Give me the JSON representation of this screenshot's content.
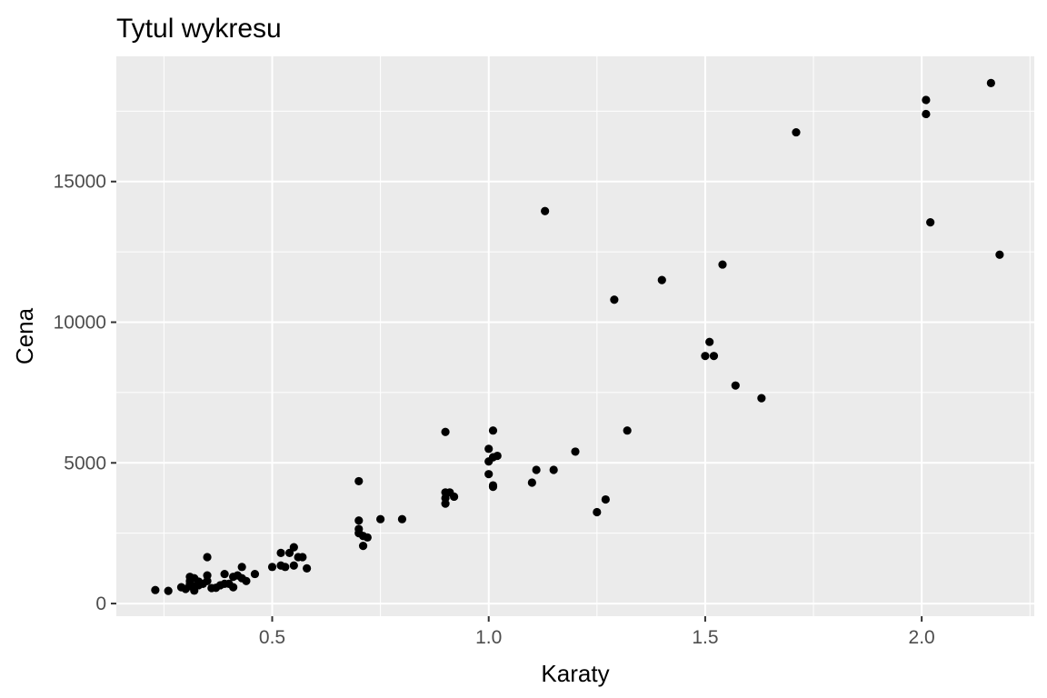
{
  "chart_data": {
    "type": "scatter",
    "title": "Tytul wykresu",
    "xlabel": "Karaty",
    "ylabel": "Cena",
    "xlim": [
      0.14,
      2.26
    ],
    "ylim": [
      -450,
      19450
    ],
    "x_ticks": [
      0.5,
      1.0,
      1.5,
      2.0
    ],
    "x_tick_labels": [
      "0.5",
      "1.0",
      "1.5",
      "2.0"
    ],
    "y_ticks": [
      0,
      5000,
      10000,
      15000
    ],
    "y_tick_labels": [
      "0",
      "5000",
      "10000",
      "15000"
    ],
    "grid": true,
    "legend": "none",
    "colors": {
      "panel": "#ebebeb",
      "grid": "#ffffff",
      "point": "#000000",
      "tick": "#333333",
      "tick_label": "#4d4d4d"
    },
    "points": [
      {
        "x": 0.23,
        "y": 480
      },
      {
        "x": 0.26,
        "y": 450
      },
      {
        "x": 0.29,
        "y": 580
      },
      {
        "x": 0.3,
        "y": 520
      },
      {
        "x": 0.31,
        "y": 950
      },
      {
        "x": 0.31,
        "y": 800
      },
      {
        "x": 0.31,
        "y": 700
      },
      {
        "x": 0.31,
        "y": 620
      },
      {
        "x": 0.32,
        "y": 460
      },
      {
        "x": 0.32,
        "y": 600
      },
      {
        "x": 0.32,
        "y": 900
      },
      {
        "x": 0.33,
        "y": 650
      },
      {
        "x": 0.33,
        "y": 780
      },
      {
        "x": 0.34,
        "y": 700
      },
      {
        "x": 0.35,
        "y": 1000
      },
      {
        "x": 0.35,
        "y": 1650
      },
      {
        "x": 0.35,
        "y": 800
      },
      {
        "x": 0.36,
        "y": 550
      },
      {
        "x": 0.37,
        "y": 560
      },
      {
        "x": 0.38,
        "y": 650
      },
      {
        "x": 0.39,
        "y": 1050
      },
      {
        "x": 0.39,
        "y": 700
      },
      {
        "x": 0.4,
        "y": 700
      },
      {
        "x": 0.41,
        "y": 950
      },
      {
        "x": 0.41,
        "y": 580
      },
      {
        "x": 0.42,
        "y": 1000
      },
      {
        "x": 0.43,
        "y": 1300
      },
      {
        "x": 0.43,
        "y": 900
      },
      {
        "x": 0.44,
        "y": 800
      },
      {
        "x": 0.46,
        "y": 1050
      },
      {
        "x": 0.5,
        "y": 1300
      },
      {
        "x": 0.52,
        "y": 1350
      },
      {
        "x": 0.52,
        "y": 1800
      },
      {
        "x": 0.53,
        "y": 1300
      },
      {
        "x": 0.54,
        "y": 1800
      },
      {
        "x": 0.55,
        "y": 2000
      },
      {
        "x": 0.55,
        "y": 1350
      },
      {
        "x": 0.56,
        "y": 1650
      },
      {
        "x": 0.57,
        "y": 1650
      },
      {
        "x": 0.58,
        "y": 1250
      },
      {
        "x": 0.7,
        "y": 4350
      },
      {
        "x": 0.7,
        "y": 2950
      },
      {
        "x": 0.7,
        "y": 2650
      },
      {
        "x": 0.7,
        "y": 2500
      },
      {
        "x": 0.71,
        "y": 2400
      },
      {
        "x": 0.71,
        "y": 2050
      },
      {
        "x": 0.72,
        "y": 2350
      },
      {
        "x": 0.75,
        "y": 3000
      },
      {
        "x": 0.8,
        "y": 3000
      },
      {
        "x": 0.9,
        "y": 6100
      },
      {
        "x": 0.9,
        "y": 3950
      },
      {
        "x": 0.9,
        "y": 3750
      },
      {
        "x": 0.9,
        "y": 3550
      },
      {
        "x": 0.91,
        "y": 3950
      },
      {
        "x": 0.92,
        "y": 3800
      },
      {
        "x": 1.0,
        "y": 5500
      },
      {
        "x": 1.0,
        "y": 5050
      },
      {
        "x": 1.0,
        "y": 4600
      },
      {
        "x": 1.01,
        "y": 6150
      },
      {
        "x": 1.01,
        "y": 5200
      },
      {
        "x": 1.01,
        "y": 4200
      },
      {
        "x": 1.01,
        "y": 4150
      },
      {
        "x": 1.02,
        "y": 5250
      },
      {
        "x": 1.1,
        "y": 4300
      },
      {
        "x": 1.11,
        "y": 4750
      },
      {
        "x": 1.13,
        "y": 13950
      },
      {
        "x": 1.15,
        "y": 4750
      },
      {
        "x": 1.2,
        "y": 5400
      },
      {
        "x": 1.25,
        "y": 3250
      },
      {
        "x": 1.27,
        "y": 3700
      },
      {
        "x": 1.29,
        "y": 10800
      },
      {
        "x": 1.32,
        "y": 6150
      },
      {
        "x": 1.4,
        "y": 11500
      },
      {
        "x": 1.5,
        "y": 8800
      },
      {
        "x": 1.51,
        "y": 9300
      },
      {
        "x": 1.52,
        "y": 8800
      },
      {
        "x": 1.54,
        "y": 12050
      },
      {
        "x": 1.57,
        "y": 7750
      },
      {
        "x": 1.63,
        "y": 7300
      },
      {
        "x": 1.71,
        "y": 16750
      },
      {
        "x": 2.01,
        "y": 17900
      },
      {
        "x": 2.01,
        "y": 17400
      },
      {
        "x": 2.02,
        "y": 13550
      },
      {
        "x": 2.16,
        "y": 18500
      },
      {
        "x": 2.18,
        "y": 12400
      }
    ]
  }
}
